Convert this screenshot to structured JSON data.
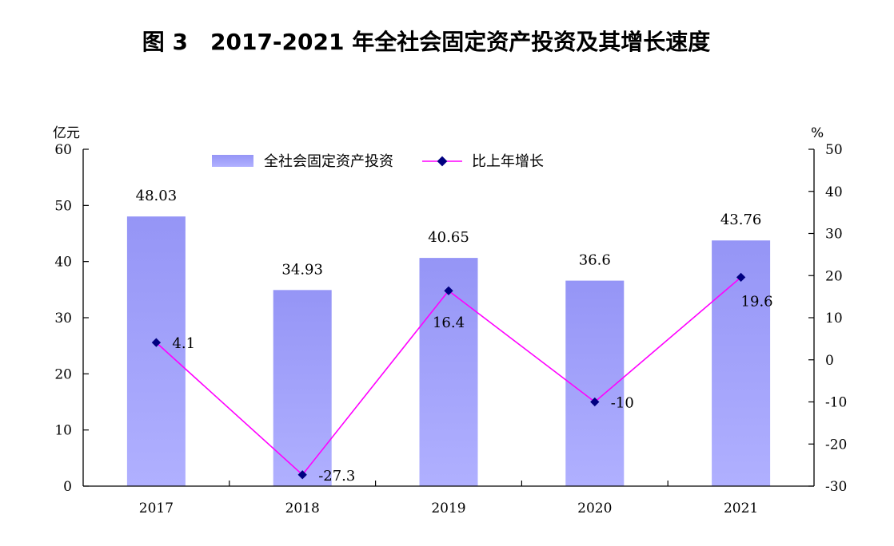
{
  "chart_data": {
    "type": "bar",
    "title": "图 3　2017-2021 年全社会固定资产投资及其增长速度",
    "categories": [
      "2017",
      "2018",
      "2019",
      "2020",
      "2021"
    ],
    "left_axis": {
      "unit": "亿元",
      "range": [
        0,
        60
      ],
      "ticks": [
        "0",
        "10",
        "20",
        "30",
        "40",
        "50",
        "60"
      ]
    },
    "right_axis": {
      "unit": "%",
      "range": [
        -30,
        50
      ],
      "ticks": [
        "-30",
        "-20",
        "-10",
        "0",
        "10",
        "20",
        "30",
        "40",
        "50"
      ]
    },
    "series": [
      {
        "name": "全社会固定资产投资",
        "type": "bar",
        "axis": "left",
        "values": [
          48.03,
          34.93,
          40.65,
          36.6,
          43.76
        ],
        "labels": [
          "48.03",
          "34.93",
          "40.65",
          "36.6",
          "43.76"
        ],
        "color": "#9999ff"
      },
      {
        "name": "比上年增长",
        "type": "line",
        "axis": "right",
        "values": [
          4.1,
          -27.3,
          16.4,
          -10,
          19.6
        ],
        "labels": [
          "4.1",
          "-27.3",
          "16.4",
          "-10",
          "19.6"
        ],
        "color": "#ff00ff",
        "marker_color": "#000080"
      }
    ],
    "grid": false,
    "legend": "top"
  }
}
